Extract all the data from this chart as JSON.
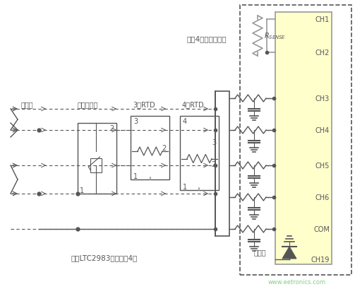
{
  "bg_color": "#ffffff",
  "dashed_border_color": "#555555",
  "chip_bg_color": "#ffffcc",
  "chip_border_color": "#999999",
  "line_color": "#555555",
  "gray_line_color": "#999999",
  "text_color": "#555555",
  "label_color": "#888888",
  "ch_labels": [
    "CH1",
    "CH2",
    "CH3",
    "CH4",
    "CH5",
    "CH6",
    "COM",
    "CH19"
  ],
  "sensor_labels": [
    "热电偶",
    "热敏电阻器",
    "3线RTD",
    "4线RTD"
  ],
  "top_label": "所有4组传感器共用",
  "bottom_label": "每个LTC2983连接多达4组",
  "cold_junction_label": "冷接点",
  "watermark": "www.eetronics.com",
  "fig_width": 5.03,
  "fig_height": 4.1,
  "dpi": 100
}
